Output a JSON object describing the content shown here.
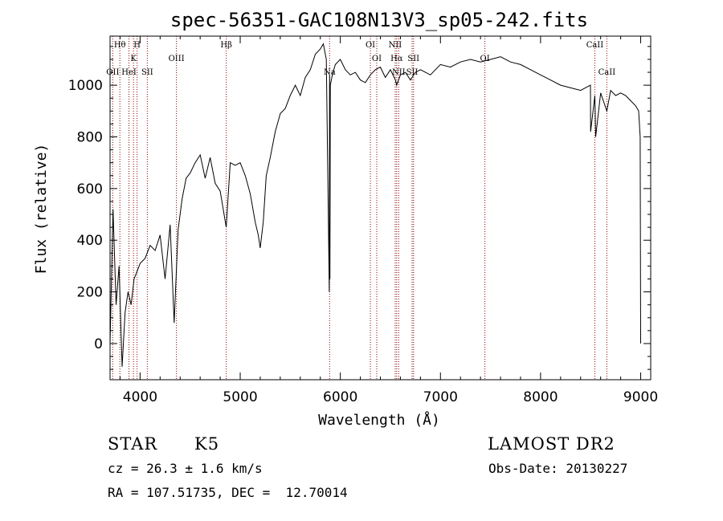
{
  "chart_data": {
    "type": "line",
    "title": "spec-56351-GAC108N13V3_sp05-242.fits",
    "xlabel": "Wavelength (Å)",
    "ylabel": "Flux (relative)",
    "xlim": [
      3700,
      9100
    ],
    "ylim": [
      -140,
      1190
    ],
    "xticks": [
      4000,
      5000,
      6000,
      7000,
      8000,
      9000
    ],
    "yticks": [
      0,
      200,
      400,
      600,
      800,
      1000
    ],
    "grid": false,
    "series": [
      {
        "x": [
          3700,
          3730,
          3760,
          3790,
          3820,
          3850,
          3880,
          3910,
          3940,
          3970,
          4000,
          4050,
          4100,
          4150,
          4200,
          4250,
          4300,
          4340,
          4380,
          4420,
          4460,
          4500,
          4550,
          4600,
          4650,
          4700,
          4750,
          4800,
          4860,
          4900,
          4950,
          5000,
          5050,
          5100,
          5150,
          5180,
          5200,
          5230,
          5260,
          5300,
          5350,
          5400,
          5450,
          5500,
          5550,
          5600,
          5650,
          5700,
          5750,
          5800,
          5830,
          5860,
          5890,
          5893,
          5896,
          5900,
          5920,
          5950,
          6000,
          6050,
          6100,
          6150,
          6200,
          6250,
          6300,
          6350,
          6400,
          6450,
          6500,
          6550,
          6563,
          6600,
          6650,
          6700,
          6750,
          6800,
          6850,
          6900,
          6950,
          7000,
          7100,
          7200,
          7300,
          7400,
          7500,
          7600,
          7700,
          7800,
          7900,
          8000,
          8100,
          8200,
          8300,
          8400,
          8498,
          8500,
          8542,
          8550,
          8600,
          8662,
          8700,
          8750,
          8800,
          8850,
          8900,
          8950,
          8980,
          8995,
          9000
        ],
        "y": [
          0,
          520,
          150,
          300,
          -90,
          120,
          200,
          150,
          250,
          280,
          310,
          330,
          380,
          360,
          420,
          250,
          460,
          80,
          440,
          560,
          640,
          660,
          700,
          730,
          640,
          720,
          620,
          590,
          450,
          700,
          690,
          700,
          650,
          580,
          470,
          420,
          370,
          470,
          650,
          720,
          820,
          890,
          910,
          960,
          1000,
          960,
          1030,
          1060,
          1120,
          1140,
          1160,
          1100,
          200,
          1040,
          250,
          1000,
          1040,
          1080,
          1100,
          1060,
          1040,
          1050,
          1020,
          1010,
          1040,
          1060,
          1070,
          1030,
          1060,
          1020,
          1000,
          1040,
          1050,
          1020,
          1050,
          1060,
          1050,
          1040,
          1060,
          1080,
          1070,
          1090,
          1100,
          1090,
          1100,
          1110,
          1090,
          1080,
          1060,
          1040,
          1020,
          1000,
          990,
          980,
          1000,
          820,
          960,
          800,
          970,
          900,
          980,
          960,
          970,
          960,
          940,
          920,
          900,
          800,
          0
        ]
      }
    ],
    "lines": [
      {
        "label": "OII",
        "x": 3727,
        "row": 2
      },
      {
        "label": "Hθ",
        "x": 3798,
        "row": 0
      },
      {
        "label": "H",
        "x": 3970,
        "row": 0
      },
      {
        "label": "K",
        "x": 3934,
        "row": 1
      },
      {
        "label": "HeI",
        "x": 3889,
        "row": 2
      },
      {
        "label": "SII",
        "x": 4072,
        "row": 2
      },
      {
        "label": "OIII",
        "x": 4363,
        "row": 1
      },
      {
        "label": "Hβ",
        "x": 4861,
        "row": 0
      },
      {
        "label": "Na",
        "x": 5893,
        "row": 2
      },
      {
        "label": "OI",
        "x": 6300,
        "row": 0
      },
      {
        "label": "OI",
        "x": 6364,
        "row": 1
      },
      {
        "label": "NII",
        "x": 6548,
        "row": 0
      },
      {
        "label": "Hα",
        "x": 6563,
        "row": 1
      },
      {
        "label": "NII",
        "x": 6583,
        "row": 2
      },
      {
        "label": "SII",
        "x": 6717,
        "row": 2
      },
      {
        "label": "SII",
        "x": 6731,
        "row": 1
      },
      {
        "label": "OI",
        "x": 7444,
        "row": 1
      },
      {
        "label": "CaII",
        "x": 8542,
        "row": 0
      },
      {
        "label": "CaII",
        "x": 8662,
        "row": 2
      }
    ]
  },
  "info": {
    "class": "STAR",
    "subclass": "K5",
    "survey": "LAMOST DR2",
    "cz": "cz = 26.3 ± 1.6 km/s",
    "obs_date": "Obs-Date: 20130227",
    "coords": "RA = 107.51735, DEC =  12.70014"
  },
  "colors": {
    "line": "#000000",
    "marker": "#8b0000"
  }
}
